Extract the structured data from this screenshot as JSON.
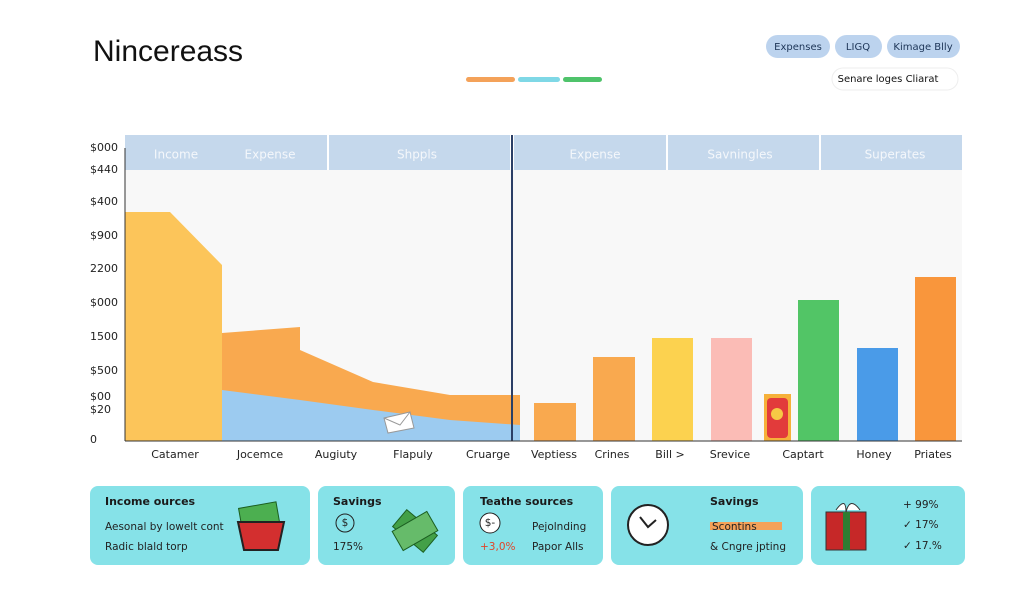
{
  "header": {
    "title": "Nincereass",
    "buttons": [
      "Expenses",
      "LIGQ",
      "Kimage Blly"
    ],
    "search": "Senare loges Cliarat"
  },
  "chart": {
    "y_labels": [
      "$000",
      "$440",
      "$400",
      "$900",
      "2200",
      "$000",
      "1500",
      "$500",
      "$00",
      "$20",
      "0"
    ],
    "headers": [
      "Income",
      "Expense",
      "Shppls",
      "Expense",
      "Savningles",
      "Superates"
    ],
    "x_labels": [
      "Catamer",
      "Jocemce",
      "Augiuty",
      "Flapuly",
      "Cruarge",
      "Veptiess",
      "Crines",
      "Bill  >",
      "Srevice",
      "Captart",
      "Honey",
      "Priates"
    ]
  },
  "cards": [
    {
      "title": "Income ources",
      "lines": [
        "Aesonal by lowelt cont",
        "Radic blald torp"
      ]
    },
    {
      "title": "Savings",
      "lines": [
        "$",
        "175%"
      ]
    },
    {
      "title": "Teathe sources",
      "lines": [
        "$-",
        "Pejolnding",
        "+3,0%",
        "Papor Alls"
      ]
    },
    {
      "title": "Savings",
      "lines": [
        "Scontins",
        "& Cngre jpting"
      ]
    },
    {
      "lines": [
        "+ 99%",
        "✓ 17%",
        "✓ 17.%"
      ]
    }
  ]
}
